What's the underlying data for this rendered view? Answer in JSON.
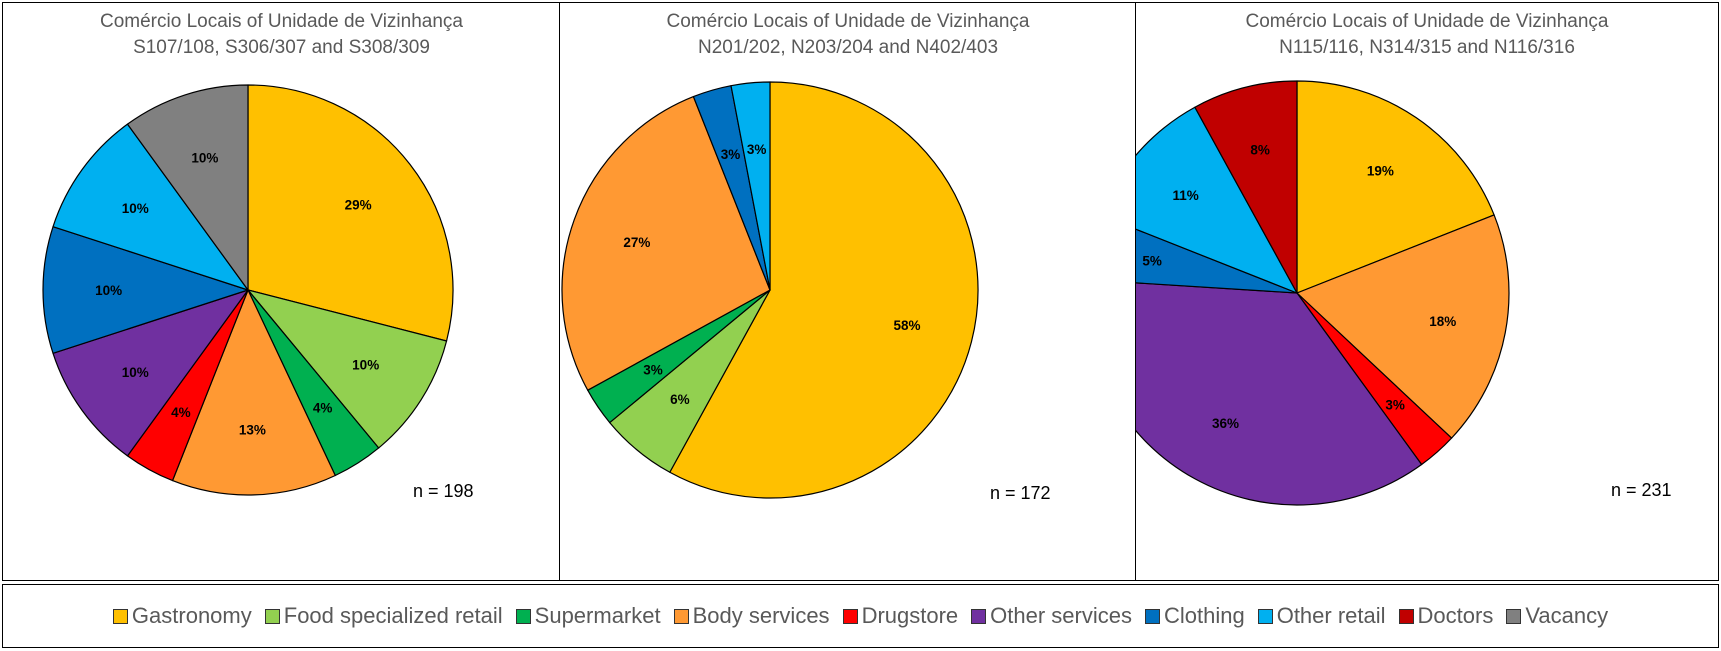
{
  "chart_data": [
    {
      "type": "pie",
      "title": [
        "Comércio Locais of Unidade de Vizinhança",
        "S107/108, S306/307 and S308/309"
      ],
      "n_label": "n = 198",
      "slices": [
        {
          "category": "Gastronomy",
          "value": 29,
          "label": "29%"
        },
        {
          "category": "Food specialized retail",
          "value": 10,
          "label": "10%"
        },
        {
          "category": "Supermarket",
          "value": 4,
          "label": "4%"
        },
        {
          "category": "Body services",
          "value": 13,
          "label": "13%"
        },
        {
          "category": "Drugstore",
          "value": 4,
          "label": "4%"
        },
        {
          "category": "Other services",
          "value": 10,
          "label": "10%"
        },
        {
          "category": "Clothing",
          "value": 10,
          "label": "10%"
        },
        {
          "category": "Other retail",
          "value": 10,
          "label": "10%"
        },
        {
          "category": "Vacancy",
          "value": 10,
          "label": "10%"
        }
      ]
    },
    {
      "type": "pie",
      "title": [
        "Comércio Locais of Unidade de Vizinhança",
        "N201/202, N203/204 and N402/403"
      ],
      "n_label": "n = 172",
      "slices": [
        {
          "category": "Gastronomy",
          "value": 58,
          "label": "58%"
        },
        {
          "category": "Food specialized retail",
          "value": 6,
          "label": "6%"
        },
        {
          "category": "Supermarket",
          "value": 3,
          "label": "3%"
        },
        {
          "category": "Body services",
          "value": 27,
          "label": "27%"
        },
        {
          "category": "Clothing",
          "value": 3,
          "label": "3%"
        },
        {
          "category": "Other retail",
          "value": 3,
          "label": "3%"
        }
      ]
    },
    {
      "type": "pie",
      "title": [
        "Comércio Locais of Unidade de Vizinhança",
        "N115/116, N314/315 and N116/316"
      ],
      "n_label": "n = 231",
      "slices": [
        {
          "category": "Gastronomy",
          "value": 19,
          "label": "19%"
        },
        {
          "category": "Body services",
          "value": 18,
          "label": "18%"
        },
        {
          "category": "Drugstore",
          "value": 3,
          "label": "3%"
        },
        {
          "category": "Other services",
          "value": 36,
          "label": "36%"
        },
        {
          "category": "Clothing",
          "value": 5,
          "label": "5%"
        },
        {
          "category": "Other retail",
          "value": 11,
          "label": "11%"
        },
        {
          "category": "Doctors",
          "value": 8,
          "label": "8%"
        }
      ]
    }
  ],
  "legend": [
    {
      "label": "Gastronomy",
      "color": "#FFC000"
    },
    {
      "label": "Food specialized retail",
      "color": "#92D050"
    },
    {
      "label": "Supermarket",
      "color": "#00B050"
    },
    {
      "label": "Body services",
      "color": "#FF9933"
    },
    {
      "label": "Drugstore",
      "color": "#FF0000"
    },
    {
      "label": "Other services",
      "color": "#7030A0"
    },
    {
      "label": "Clothing",
      "color": "#0070C0"
    },
    {
      "label": "Other retail",
      "color": "#00B0F0"
    },
    {
      "label": "Doctors",
      "color": "#C00000"
    },
    {
      "label": "Vacancy",
      "color": "#808080"
    }
  ]
}
